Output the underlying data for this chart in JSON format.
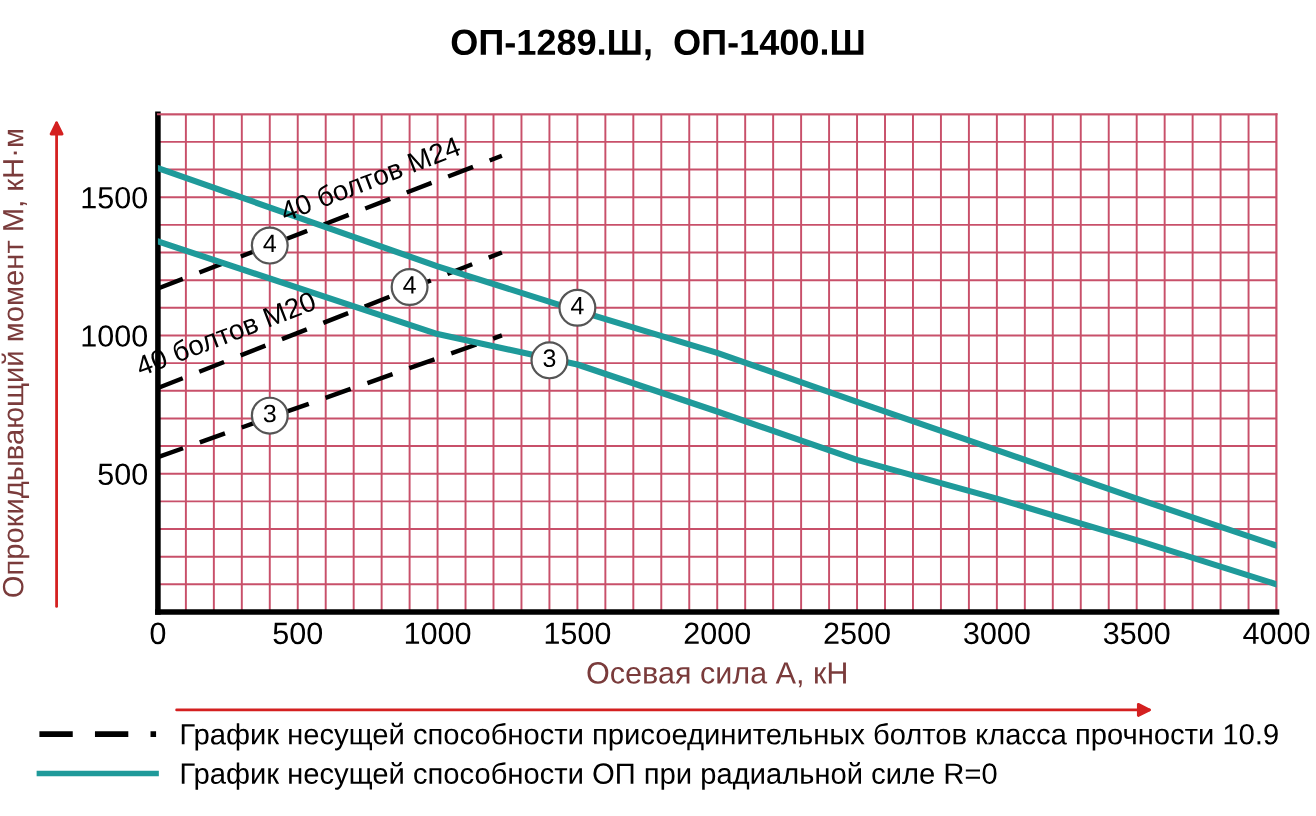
{
  "chart_data": {
    "type": "line",
    "title": "ОП-1289.Ш,  ОП-1400.Ш",
    "xlabel": "Осевая сила А, кН",
    "ylabel": "Опрокидывающий момент М, кН·м",
    "xlim": [
      0,
      4000
    ],
    "ylim": [
      0,
      1800
    ],
    "xticks": [
      0,
      {
        "value": 100,
        "label": null
      },
      {
        "value": 200,
        "label": null
      },
      {
        "value": 300,
        "label": null
      },
      {
        "value": 400,
        "label": null
      },
      500,
      {
        "value": 600,
        "label": null
      },
      {
        "value": 700,
        "label": null
      },
      {
        "value": 800,
        "label": null
      },
      {
        "value": 900,
        "label": null
      },
      1000,
      {
        "value": 1100,
        "label": null
      },
      {
        "value": 1200,
        "label": null
      },
      {
        "value": 1300,
        "label": null
      },
      {
        "value": 1400,
        "label": null
      },
      1500,
      {
        "value": 1600,
        "label": null
      },
      {
        "value": 1700,
        "label": null
      },
      {
        "value": 1800,
        "label": null
      },
      {
        "value": 1900,
        "label": null
      },
      2000,
      {
        "value": 2100,
        "label": null
      },
      {
        "value": 2200,
        "label": null
      },
      {
        "value": 2300,
        "label": null
      },
      {
        "value": 2400,
        "label": null
      },
      2500,
      {
        "value": 2600,
        "label": null
      },
      {
        "value": 2700,
        "label": null
      },
      {
        "value": 2800,
        "label": null
      },
      {
        "value": 2900,
        "label": null
      },
      3000,
      {
        "value": 3100,
        "label": null
      },
      {
        "value": 3200,
        "label": null
      },
      {
        "value": 3300,
        "label": null
      },
      {
        "value": 3400,
        "label": null
      },
      3500,
      {
        "value": 3600,
        "label": null
      },
      {
        "value": 3700,
        "label": null
      },
      {
        "value": 3800,
        "label": null
      },
      {
        "value": 3900,
        "label": null
      },
      4000
    ],
    "yticks": [
      {
        "value": 100,
        "label": null
      },
      {
        "value": 200,
        "label": null
      },
      {
        "value": 300,
        "label": null
      },
      {
        "value": 400,
        "label": null
      },
      500,
      {
        "value": 600,
        "label": null
      },
      {
        "value": 700,
        "label": null
      },
      {
        "value": 800,
        "label": null
      },
      {
        "value": 900,
        "label": null
      },
      1000,
      {
        "value": 1100,
        "label": null
      },
      {
        "value": 1200,
        "label": null
      },
      {
        "value": 1300,
        "label": null
      },
      {
        "value": 1400,
        "label": null
      },
      1500,
      {
        "value": 1600,
        "label": null
      },
      {
        "value": 1700,
        "label": null
      },
      {
        "value": 1800,
        "label": null
      }
    ],
    "grid": true,
    "legend": "bottom",
    "series": [
      {
        "name": "График несущей способности присоединительных болтов класса прочности 10.9",
        "color": "#000000",
        "line_style": "dashed",
        "x": [
          0,
          1230
        ],
        "values": [
          1170,
          1650
        ]
      },
      {
        "color": "#000000",
        "line_style": "dashed",
        "x": [
          0,
          1230
        ],
        "values": [
          810,
          1300
        ]
      },
      {
        "color": "#000000",
        "line_style": "dashed",
        "x": [
          0,
          1230
        ],
        "values": [
          560,
          1000
        ]
      },
      {
        "name": "График несущей способности ОП при радиальной силе R=0",
        "color": "#1f9a9a",
        "line_style": "solid",
        "x": [
          0,
          1000,
          1500,
          2000,
          2500,
          3000,
          3500,
          4000
        ],
        "values": [
          1605,
          1250,
          1090,
          937,
          760,
          585,
          410,
          240
        ]
      },
      {
        "color": "#1f9a9a",
        "line_style": "solid",
        "x": [
          0,
          1000,
          1500,
          2000,
          2500,
          3000,
          3500,
          4000
        ],
        "values": [
          1340,
          1005,
          895,
          725,
          550,
          410,
          260,
          100
        ]
      }
    ],
    "annotations": [
      "40 болтов М24",
      "40 болтов М20",
      {
        "text": "4",
        "x": 400,
        "y": 1325
      },
      {
        "text": "4",
        "x": 900,
        "y": 1175
      },
      {
        "text": "3",
        "x": 400,
        "y": 710
      },
      {
        "text": "4",
        "x": 1500,
        "y": 1100
      },
      {
        "text": "3",
        "x": 1400,
        "y": 910
      }
    ]
  }
}
